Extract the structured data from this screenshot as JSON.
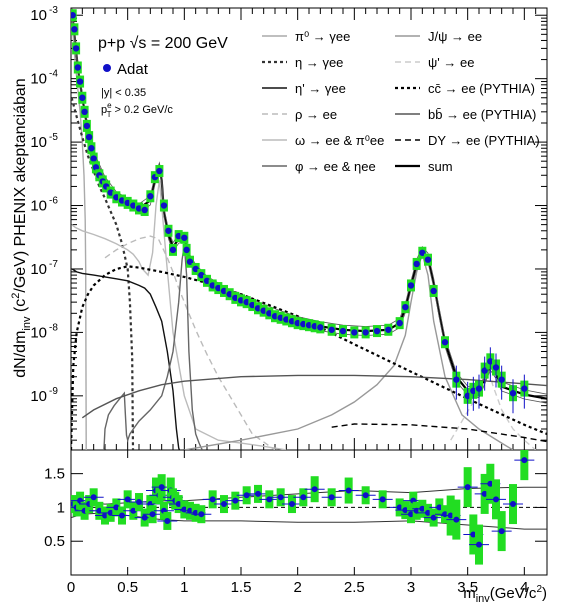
{
  "chart_data": [
    {
      "type": "line",
      "panel": "main",
      "ylabel": "dN/dm_inv (c^2/GeV) PHENIX akeptanciában",
      "yscale": "log",
      "xlim": [
        0,
        4.2
      ],
      "ylim": [
        1.4e-10,
        0.0013
      ],
      "x_ticks": [
        "0",
        "0.5",
        "1",
        "1.5",
        "2",
        "2.5",
        "3",
        "3.5",
        "4"
      ],
      "y_ticks": [
        "10^-9",
        "10^-8",
        "10^-7",
        "10^-6",
        "10^-5",
        "10^-4",
        "10^-3"
      ],
      "annotations": {
        "system": "p+p  √s = 200 GeV",
        "data_label": "Adat",
        "rapidity_cut": "|y| < 0.35",
        "pt_cut_symbol": "p",
        "pt_cut_sup": "e",
        "pt_cut_sub": "T",
        "pt_cut_value": " > 0.2 GeV/c"
      },
      "legend": [
        {
          "label": "π⁰ → γee",
          "color": "#aaaaaa",
          "dash": "solid"
        },
        {
          "label": "η → γee",
          "color": "#333333",
          "dash": "dotted"
        },
        {
          "label": "η' → γee",
          "color": "#111111",
          "dash": "solid"
        },
        {
          "label": "ρ → ee",
          "color": "#bbbbbb",
          "dash": "dashed"
        },
        {
          "label": "ω → ee & π⁰ee",
          "color": "#bbbbbb",
          "dash": "solid"
        },
        {
          "label": "φ → ee & ηee",
          "color": "#666666",
          "dash": "solid"
        },
        {
          "label": "J/ψ → ee",
          "color": "#999999",
          "dash": "solid"
        },
        {
          "label": "ψ' → ee",
          "color": "#cccccc",
          "dash": "dashed"
        },
        {
          "label": "cc̄ → ee (PYTHIA)",
          "color": "#000000",
          "dash": "dotted"
        },
        {
          "label": "bb̄ → ee (PYTHIA)",
          "color": "#555555",
          "dash": "solid"
        },
        {
          "label": "DY → ee (PYTHIA)",
          "color": "#000000",
          "dash": "dashed"
        },
        {
          "label": "sum",
          "color": "#000000",
          "dash": "solid"
        }
      ],
      "colors": {
        "data_marker": "#1010c8",
        "syst_box": "#22dd22"
      },
      "series": [
        {
          "name": "Adat",
          "kind": "points",
          "x": [
            0.015,
            0.03,
            0.045,
            0.06,
            0.08,
            0.1,
            0.12,
            0.14,
            0.16,
            0.18,
            0.2,
            0.22,
            0.25,
            0.28,
            0.31,
            0.35,
            0.4,
            0.45,
            0.5,
            0.55,
            0.6,
            0.65,
            0.7,
            0.74,
            0.78,
            0.82,
            0.86,
            0.9,
            0.95,
            1.0,
            1.02,
            1.05,
            1.1,
            1.15,
            1.2,
            1.25,
            1.3,
            1.35,
            1.4,
            1.45,
            1.5,
            1.55,
            1.6,
            1.65,
            1.7,
            1.75,
            1.8,
            1.85,
            1.9,
            1.95,
            2.0,
            2.05,
            2.1,
            2.15,
            2.2,
            2.3,
            2.4,
            2.5,
            2.6,
            2.7,
            2.8,
            2.9,
            2.95,
            3.0,
            3.05,
            3.1,
            3.15,
            3.2,
            3.3,
            3.4,
            3.5,
            3.55,
            3.6,
            3.65,
            3.7,
            3.75,
            3.8,
            3.9,
            4.0
          ],
          "y": [
            0.001,
            0.0006,
            0.0003,
            0.00015,
            9e-05,
            5e-05,
            3e-05,
            1.8e-05,
            1.2e-05,
            8e-06,
            5.5e-06,
            4e-06,
            3e-06,
            2.4e-06,
            2e-06,
            1.6e-06,
            1.35e-06,
            1.2e-06,
            1.1e-06,
            1e-06,
            9e-07,
            8.5e-07,
            1.4e-06,
            2.8e-06,
            3.5e-06,
            1e-06,
            4e-07,
            2e-07,
            3.3e-07,
            3.1e-07,
            2e-07,
            1.3e-07,
            1e-07,
            8e-08,
            6.5e-08,
            5.5e-08,
            5e-08,
            4.5e-08,
            4e-08,
            3.5e-08,
            3.2e-08,
            3e-08,
            2.7e-08,
            2.4e-08,
            2.2e-08,
            2e-08,
            1.8e-08,
            1.7e-08,
            1.6e-08,
            1.5e-08,
            1.4e-08,
            1.35e-08,
            1.3e-08,
            1.25e-08,
            1.2e-08,
            1.1e-08,
            1.05e-08,
            1e-08,
            1e-08,
            1.05e-08,
            1.1e-08,
            1.4e-08,
            2.5e-08,
            5.5e-08,
            1.2e-07,
            1.8e-07,
            1.4e-07,
            4.5e-08,
            7e-09,
            1.8e-09,
            1e-09,
            1.2e-09,
            1.3e-09,
            2.5e-09,
            3.5e-09,
            2.8e-09,
            1.8e-09,
            1.1e-09,
            1.3e-09
          ]
        },
        {
          "name": "sum",
          "kind": "line",
          "x": [
            0.01,
            0.03,
            0.06,
            0.1,
            0.15,
            0.2,
            0.3,
            0.4,
            0.5,
            0.6,
            0.7,
            0.74,
            0.78,
            0.8,
            0.82,
            0.86,
            0.9,
            0.95,
            1.0,
            1.02,
            1.05,
            1.1,
            1.2,
            1.4,
            1.6,
            1.8,
            2.0,
            2.2,
            2.4,
            2.6,
            2.8,
            2.9,
            2.95,
            3.0,
            3.05,
            3.1,
            3.15,
            3.2,
            3.25,
            3.3,
            3.4,
            3.5,
            3.6,
            3.65,
            3.7,
            3.75,
            3.8,
            4.0,
            4.2
          ],
          "y": [
            0.0011,
            0.0005,
            0.00015,
            5e-05,
            1.5e-05,
            6e-06,
            2.4e-06,
            1.4e-06,
            1.1e-06,
            9e-07,
            1.2e-06,
            2.5e-06,
            4e-06,
            2.5e-06,
            8e-07,
            3.5e-07,
            2.2e-07,
            3e-07,
            3.2e-07,
            2.2e-07,
            1.4e-07,
            1e-07,
            6.5e-08,
            4e-08,
            2.8e-08,
            2e-08,
            1.5e-08,
            1.25e-08,
            1.1e-08,
            1.05e-08,
            1.1e-08,
            1.4e-08,
            2.4e-08,
            5.5e-08,
            1.2e-07,
            1.9e-07,
            1.5e-07,
            6e-08,
            2e-08,
            7e-09,
            2e-09,
            1.2e-09,
            1.1e-09,
            1.8e-09,
            3e-09,
            2.2e-09,
            1.4e-09,
            1.05e-09,
            9e-10
          ]
        },
        {
          "name": "π⁰ → γee",
          "kind": "line",
          "x": [
            0.005,
            0.02,
            0.04,
            0.06,
            0.08,
            0.1,
            0.115,
            0.125,
            0.13,
            0.134
          ],
          "y": [
            0.0011,
            0.00045,
            0.00016,
            7e-05,
            3e-05,
            1e-05,
            3e-06,
            6e-07,
            1e-07,
            1.4e-10
          ]
        },
        {
          "name": "η → γee",
          "kind": "line",
          "x": [
            0.005,
            0.02,
            0.05,
            0.1,
            0.15,
            0.2,
            0.25,
            0.3,
            0.35,
            0.4,
            0.45,
            0.5,
            0.52,
            0.54,
            0.545,
            0.547
          ],
          "y": [
            5e-05,
            4e-05,
            2.5e-05,
            1.2e-05,
            6e-06,
            3.5e-06,
            2e-06,
            1.3e-06,
            8e-07,
            5e-07,
            2.5e-07,
            1e-07,
            3e-08,
            4e-09,
            3e-10,
            1.4e-10
          ]
        },
        {
          "name": "η' → γee",
          "kind": "line",
          "x": [
            0.01,
            0.05,
            0.1,
            0.2,
            0.3,
            0.4,
            0.5,
            0.6,
            0.65,
            0.7,
            0.75,
            0.8,
            0.85,
            0.9,
            0.93,
            0.95,
            0.957
          ],
          "y": [
            1e-07,
            9e-08,
            8.5e-08,
            8e-08,
            7.5e-08,
            7e-08,
            6.5e-08,
            5.5e-08,
            5e-08,
            4e-08,
            2.5e-08,
            1.5e-08,
            5e-09,
            1.2e-09,
            3e-10,
            1.5e-10,
            1.4e-10
          ]
        },
        {
          "name": "ρ → ee",
          "kind": "line",
          "x": [
            0.3,
            0.4,
            0.5,
            0.6,
            0.7,
            0.77,
            0.85,
            0.9,
            0.95,
            1.0,
            1.05,
            1.1,
            1.15,
            1.2,
            1.25,
            1.3,
            1.4,
            1.5,
            1.6,
            1.8
          ],
          "y": [
            1.5e-07,
            2e-07,
            2.5e-07,
            3e-07,
            3.3e-07,
            3e-07,
            1.5e-07,
            9e-08,
            5e-08,
            3e-08,
            1.8e-08,
            1.1e-08,
            7e-09,
            4.5e-09,
            3e-09,
            2e-09,
            1e-09,
            5e-10,
            2.5e-10,
            1.4e-10
          ]
        },
        {
          "name": "ω → ee & π⁰ee",
          "kind": "line",
          "x": [
            0.005,
            0.04,
            0.1,
            0.2,
            0.3,
            0.4,
            0.5,
            0.55,
            0.6,
            0.63,
            0.68,
            0.72,
            0.75,
            0.78,
            0.8,
            0.84,
            0.9,
            1.0,
            1.1,
            1.3,
            1.5,
            1.7,
            1.9
          ],
          "y": [
            5e-07,
            4.5e-07,
            4e-07,
            3.5e-07,
            3e-07,
            2.5e-07,
            2e-07,
            1.7e-07,
            1.3e-07,
            1e-07,
            8e-08,
            1.8e-07,
            1e-06,
            2.5e-06,
            1e-06,
            1.5e-07,
            1e-08,
            1e-09,
            3e-10,
            2e-10,
            1.8e-10,
            1.6e-10,
            1.4e-10
          ]
        },
        {
          "name": "φ → ee & ηee",
          "kind": "line",
          "x": [
            0.29,
            0.3,
            0.33,
            0.38,
            0.43,
            0.47,
            0.48,
            0.49,
            0.5,
            0.52,
            0.55,
            0.6,
            0.7,
            0.8,
            0.85,
            0.9,
            0.95,
            0.98,
            1.0,
            1.02,
            1.04,
            1.07,
            1.1,
            1.13,
            1.15,
            1.16
          ],
          "y": [
            1.4e-10,
            3e-10,
            5e-10,
            7e-10,
            9e-10,
            1.1e-09,
            5e-10,
            2.4e-10,
            2e-10,
            2.5e-10,
            3e-10,
            4e-10,
            6e-10,
            1e-09,
            2e-09,
            5e-09,
            3e-08,
            1.4e-07,
            2.4e-07,
            8e-08,
            5e-09,
            6e-10,
            2.5e-10,
            1.8e-10,
            1.5e-10,
            1.4e-10
          ]
        },
        {
          "name": "J/ψ → ee",
          "kind": "line",
          "x": [
            1.0,
            1.5,
            2.0,
            2.3,
            2.5,
            2.7,
            2.85,
            2.95,
            3.0,
            3.05,
            3.1,
            3.15,
            3.2,
            3.3,
            3.45,
            3.6,
            3.8,
            3.9
          ],
          "y": [
            1.4e-10,
            2e-10,
            3e-10,
            5e-10,
            8e-10,
            1.5e-09,
            3e-09,
            9e-09,
            3e-08,
            9e-08,
            1.7e-07,
            8e-08,
            1.5e-08,
            2e-09,
            5e-10,
            3e-10,
            1.8e-10,
            1.4e-10
          ]
        },
        {
          "name": "ψ' → ee",
          "kind": "line",
          "x": [
            3.35,
            3.45,
            3.55,
            3.62,
            3.66,
            3.69,
            3.72,
            3.8,
            3.9,
            4.0,
            4.1
          ],
          "y": [
            2e-10,
            4e-10,
            8e-10,
            1.2e-09,
            2e-09,
            2.5e-09,
            1.5e-09,
            6e-10,
            3e-10,
            2e-10,
            1.4e-10
          ]
        },
        {
          "name": "cc̄ → ee (PYTHIA)",
          "kind": "line",
          "x": [
            0.0,
            0.02,
            0.05,
            0.1,
            0.15,
            0.2,
            0.3,
            0.4,
            0.5,
            0.6,
            0.8,
            1.0,
            1.2,
            1.5,
            2.0,
            2.5,
            3.0,
            3.5,
            4.0,
            4.2
          ],
          "y": [
            1.4e-10,
            3e-09,
            1e-08,
            2.5e-08,
            4e-08,
            5.5e-08,
            8e-08,
            1e-07,
            1.1e-07,
            1.05e-07,
            9e-08,
            7.5e-08,
            6e-08,
            4e-08,
            1.8e-08,
            6.5e-09,
            2.4e-09,
            9e-10,
            3.5e-10,
            2.5e-10
          ]
        },
        {
          "name": "bb̄ → ee (PYTHIA)",
          "kind": "line",
          "x": [
            0.1,
            0.2,
            0.4,
            0.6,
            0.8,
            1.0,
            1.5,
            2.0,
            2.5,
            3.0,
            3.5,
            4.0,
            4.2
          ],
          "y": [
            4.5e-10,
            6e-10,
            9e-10,
            1.2e-09,
            1.5e-09,
            1.7e-09,
            2e-09,
            2.1e-09,
            2.1e-09,
            2e-09,
            1.8e-09,
            1.55e-09,
            1.45e-09
          ]
        },
        {
          "name": "DY → ee (PYTHIA)",
          "kind": "line",
          "x": [
            2.3,
            2.5,
            3.0,
            3.5,
            4.0,
            4.2
          ],
          "y": [
            3.2e-10,
            3.6e-10,
            3.5e-10,
            3e-10,
            2.2e-10,
            1.9e-10
          ]
        }
      ]
    },
    {
      "type": "scatter",
      "panel": "ratio",
      "xlabel": "m_inv(GeV/c^2)",
      "xlim": [
        0,
        4.2
      ],
      "ylim": [
        0,
        1.85
      ],
      "x_ticks": [
        "0",
        "0.5",
        "1",
        "1.5",
        "2",
        "2.5",
        "3",
        "3.5",
        "4"
      ],
      "y_ticks": [
        "0.5",
        "1",
        "1.5"
      ],
      "reference_line": 1,
      "band_upper": {
        "x": [
          0.0,
          0.1,
          0.3,
          0.5,
          0.8,
          1.0,
          1.5,
          2.0,
          2.5,
          3.0,
          3.5,
          4.0,
          4.2
        ],
        "y": [
          1.15,
          1.08,
          1.05,
          1.07,
          1.1,
          1.1,
          1.15,
          1.2,
          1.25,
          1.22,
          1.28,
          1.3,
          1.3
        ]
      },
      "band_lower": {
        "x": [
          0.0,
          0.1,
          0.3,
          0.5,
          0.8,
          1.0,
          1.5,
          2.0,
          2.5,
          3.0,
          3.5,
          4.0,
          4.2
        ],
        "y": [
          0.85,
          0.9,
          0.92,
          0.88,
          0.82,
          0.8,
          0.8,
          0.78,
          0.78,
          0.8,
          0.74,
          0.68,
          0.68
        ]
      },
      "series": [
        {
          "name": "ratio",
          "x": [
            0.02,
            0.05,
            0.08,
            0.12,
            0.16,
            0.2,
            0.25,
            0.3,
            0.35,
            0.4,
            0.45,
            0.5,
            0.55,
            0.6,
            0.65,
            0.7,
            0.72,
            0.75,
            0.78,
            0.8,
            0.82,
            0.85,
            0.88,
            0.9,
            0.92,
            0.95,
            1.0,
            1.05,
            1.1,
            1.15,
            1.25,
            1.35,
            1.45,
            1.55,
            1.65,
            1.75,
            1.85,
            1.95,
            2.05,
            2.15,
            2.3,
            2.45,
            2.6,
            2.75,
            2.9,
            2.95,
            3.0,
            3.02,
            3.05,
            3.1,
            3.15,
            3.2,
            3.25,
            3.3,
            3.35,
            3.4,
            3.5,
            3.55,
            3.6,
            3.65,
            3.7,
            3.75,
            3.8,
            3.9,
            4.0
          ],
          "y": [
            1.05,
            1.0,
            1.1,
            0.95,
            1.05,
            1.15,
            0.95,
            0.88,
            0.92,
            1.0,
            0.88,
            1.12,
            0.95,
            1.08,
            0.85,
            1.05,
            0.9,
            1.25,
            1.18,
            1.3,
            0.95,
            0.8,
            1.25,
            1.15,
            1.1,
            1.05,
            0.97,
            0.95,
            0.92,
            0.9,
            1.12,
            1.05,
            1.1,
            1.18,
            1.2,
            1.12,
            1.15,
            1.05,
            1.15,
            1.27,
            1.15,
            1.25,
            1.18,
            1.12,
            1.0,
            0.96,
            0.9,
            1.1,
            0.95,
            0.98,
            0.92,
            0.85,
            1.0,
            0.9,
            0.88,
            0.82,
            1.3,
            0.6,
            0.45,
            1.2,
            1.35,
            1.12,
            0.65,
            1.05,
            1.7
          ]
        }
      ]
    }
  ]
}
